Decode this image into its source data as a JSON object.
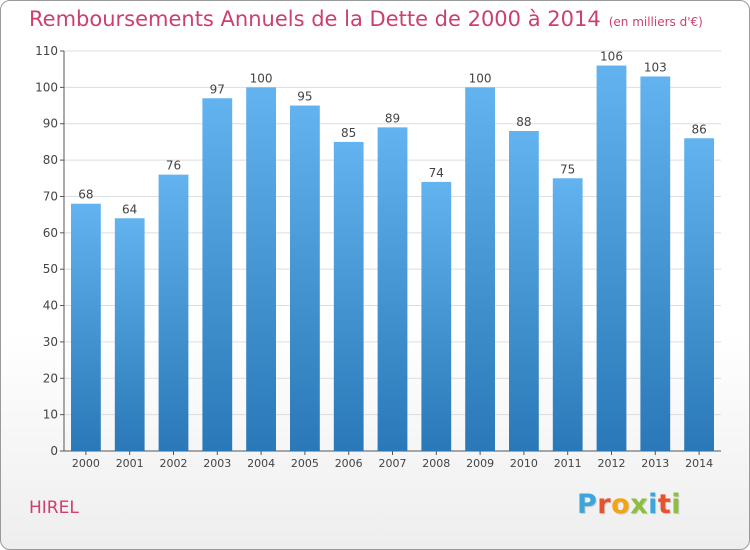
{
  "title": "Remboursements Annuels de la Dette de 2000 à 2014",
  "subtitle": "(en milliers d'€)",
  "commune": "HIREL",
  "logo": {
    "text": "Proxiti",
    "colors": [
      "#3da5d9",
      "#e4532d",
      "#f2a413",
      "#8cbf3f",
      "#3da5d9",
      "#e4532d",
      "#8cbf3f"
    ]
  },
  "colors": {
    "bar_top": "#62b3ef",
    "bar_bottom": "#2a78b7",
    "grid": "#dddddd",
    "axis": "#555555",
    "text": "#444444"
  },
  "chart_data": {
    "type": "bar",
    "categories": [
      "2000",
      "2001",
      "2002",
      "2003",
      "2004",
      "2005",
      "2006",
      "2007",
      "2008",
      "2009",
      "2010",
      "2011",
      "2012",
      "2013",
      "2014"
    ],
    "values": [
      68,
      64,
      76,
      97,
      100,
      95,
      85,
      89,
      74,
      100,
      88,
      75,
      106,
      103,
      86
    ],
    "title": "Remboursements Annuels de la Dette de 2000 à 2014",
    "subtitle": "(en milliers d'€)",
    "ylim": [
      0,
      110
    ],
    "yticks": [
      0,
      10,
      20,
      30,
      40,
      50,
      60,
      70,
      80,
      90,
      100,
      110
    ],
    "grid": true
  }
}
